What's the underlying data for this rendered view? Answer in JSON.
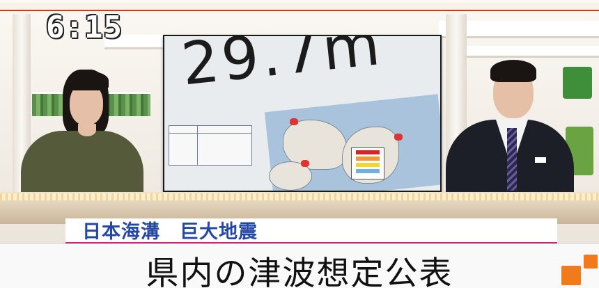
{
  "clock": {
    "time": "6:15"
  },
  "screen": {
    "height_text": "29.7m"
  },
  "caption": {
    "topic": "日本海溝　巨大地震",
    "headline": "県内の津波想定公表"
  },
  "colors": {
    "topic_text": "#2448a6",
    "topic_underline": "#c8267e",
    "accent_cubes": "#f07a1c"
  }
}
